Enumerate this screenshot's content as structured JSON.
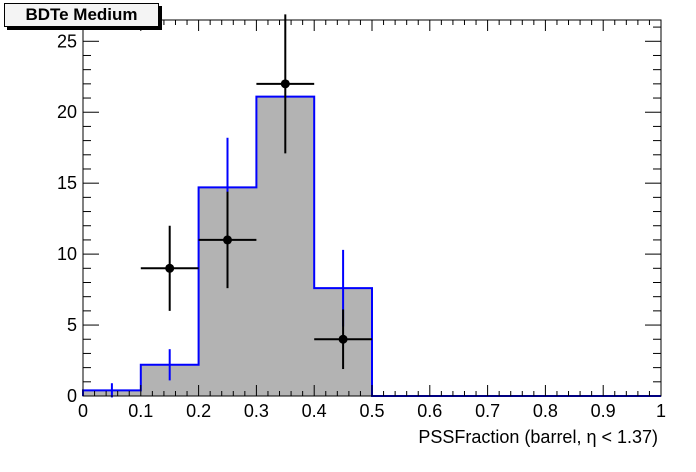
{
  "chart_data": {
    "type": "bar",
    "title": "BDTe Medium",
    "xlabel": "PSSFraction (barrel,  η < 1.37)",
    "ylabel": "",
    "xlim": [
      0,
      1
    ],
    "ylim": [
      0,
      26.5
    ],
    "x_ticks": [
      "0",
      "0.1",
      "0.2",
      "0.3",
      "0.4",
      "0.5",
      "0.6",
      "0.7",
      "0.8",
      "0.9",
      "1"
    ],
    "y_ticks": [
      "0",
      "5",
      "10",
      "15",
      "20",
      "25"
    ],
    "grid": false,
    "bin_edges": [
      0,
      0.1,
      0.2,
      0.3,
      0.4,
      0.5,
      0.6,
      0.7,
      0.8,
      0.9,
      1.0
    ],
    "series": [
      {
        "kind": "histogram",
        "fill_color": "#b3b3b3",
        "line_color": "#0000ff",
        "values": [
          0.4,
          2.2,
          14.7,
          21.1,
          7.6,
          0,
          0,
          0,
          0,
          0
        ],
        "errors": [
          0.5,
          1.1,
          3.5,
          0,
          2.7,
          0,
          0,
          0,
          0,
          0
        ]
      },
      {
        "kind": "points",
        "color": "#000000",
        "x": [
          0.15,
          0.25,
          0.35,
          0.45
        ],
        "y": [
          9,
          11,
          22,
          4
        ],
        "x_err": [
          0.05,
          0.05,
          0.05,
          0.05
        ],
        "y_err_low": [
          3.0,
          3.4,
          4.9,
          2.1
        ],
        "y_err_high": [
          3.0,
          3.4,
          4.9,
          2.1
        ]
      }
    ]
  }
}
